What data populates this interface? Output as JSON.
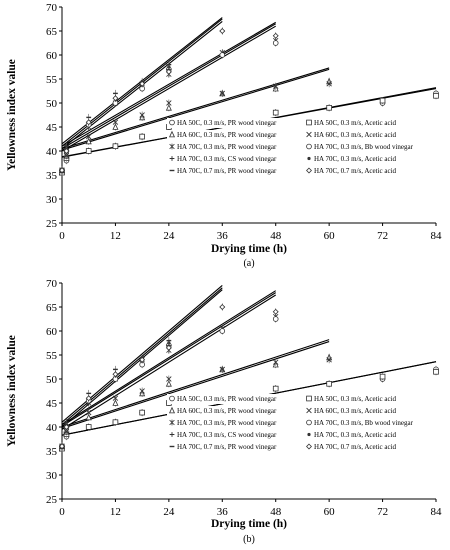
{
  "chart_data": [
    {
      "type": "scatter",
      "panel_label": "(a)",
      "xlabel": "Drying time (h)",
      "ylabel": "Yellowness index value",
      "xlim": [
        0,
        84
      ],
      "ylim": [
        25,
        70
      ],
      "xticks": [
        "0",
        "12",
        "24",
        "36",
        "48",
        "60",
        "72",
        "84"
      ],
      "yticks": [
        "25",
        "30",
        "35",
        "40",
        "45",
        "50",
        "55",
        "60",
        "65",
        "70"
      ],
      "legend": [
        {
          "label": "HA 50C, 0.3 m/s, PR wood vinegar",
          "marker": "circle"
        },
        {
          "label": "HA 50C, 0.3 m/s, Acetic acid",
          "marker": "square"
        },
        {
          "label": "HA 60C, 0.3 m/s, PR wood vinegar",
          "marker": "triangle"
        },
        {
          "label": "HA 60C, 0.3 m/s, Acetic acid",
          "marker": "x"
        },
        {
          "label": "HA 70C, 0.3 m/s, PR wood vinegar",
          "marker": "star"
        },
        {
          "label": "HA 70C, 0.3 m/s, Bb wood vinegar",
          "marker": "circle"
        },
        {
          "label": "HA 70C, 0.3 m/s, CS wood vinegar",
          "marker": "plus"
        },
        {
          "label": "HA 70C, 0.3 m/s, Acetic acid",
          "marker": "dot"
        },
        {
          "label": "HA 70C, 0.7 m/s, PR wood vinegar",
          "marker": "dash"
        },
        {
          "label": "HA 70C, 0.7 m/s, Acetic acid",
          "marker": "diamond"
        }
      ],
      "series": [
        {
          "points": [
            [
              0,
              36
            ],
            [
              1,
              38
            ],
            [
              6,
              40
            ],
            [
              12,
              41
            ],
            [
              18,
              43
            ],
            [
              24,
              45
            ],
            [
              36,
              46
            ],
            [
              48,
              48
            ],
            [
              60,
              49
            ],
            [
              72,
              50
            ],
            [
              84,
              52
            ]
          ],
          "fit": [
            [
              0,
              38.8
            ],
            [
              84,
              53
            ]
          ],
          "marker": "circle"
        },
        {
          "points": [
            [
              0,
              35.5
            ],
            [
              1,
              38.5
            ],
            [
              6,
              40
            ],
            [
              12,
              41
            ],
            [
              18,
              43
            ],
            [
              24,
              45
            ],
            [
              36,
              46
            ],
            [
              48,
              48
            ],
            [
              60,
              49
            ],
            [
              72,
              50.5
            ],
            [
              84,
              51.5
            ]
          ],
          "fit": [
            [
              0,
              38.7
            ],
            [
              84,
              53.2
            ]
          ],
          "marker": "square"
        },
        {
          "points": [
            [
              0,
              36
            ],
            [
              1,
              39
            ],
            [
              6,
              42
            ],
            [
              12,
              45
            ],
            [
              18,
              47
            ],
            [
              24,
              49
            ],
            [
              36,
              52
            ],
            [
              48,
              53
            ],
            [
              60,
              54.5
            ]
          ],
          "fit": [
            [
              0,
              40.2
            ],
            [
              60,
              57
            ]
          ],
          "marker": "triangle"
        },
        {
          "points": [
            [
              0,
              36
            ],
            [
              1,
              39
            ],
            [
              6,
              43
            ],
            [
              12,
              46
            ],
            [
              18,
              47.5
            ],
            [
              24,
              50
            ],
            [
              36,
              52
            ],
            [
              48,
              53.5
            ],
            [
              60,
              54
            ]
          ],
          "fit": [
            [
              0,
              40.5
            ],
            [
              60,
              57.3
            ]
          ],
          "marker": "x"
        },
        {
          "points": [
            [
              0,
              36
            ],
            [
              1,
              40
            ],
            [
              6,
              45
            ],
            [
              12,
              50
            ],
            [
              18,
              54
            ],
            [
              24,
              56
            ],
            [
              36,
              60.5
            ],
            [
              48,
              63
            ]
          ],
          "fit": [
            [
              0,
              40.5
            ],
            [
              48,
              66.5
            ]
          ],
          "marker": "star"
        },
        {
          "points": [
            [
              0,
              36
            ],
            [
              1,
              40
            ],
            [
              6,
              45.5
            ],
            [
              12,
              50
            ],
            [
              18,
              53
            ],
            [
              24,
              57
            ],
            [
              36,
              60
            ],
            [
              48,
              62.5
            ]
          ],
          "fit": [
            [
              0,
              41
            ],
            [
              48,
              66.8
            ]
          ],
          "marker": "circle"
        },
        {
          "points": [
            [
              0,
              36
            ],
            [
              1,
              41
            ],
            [
              6,
              46
            ],
            [
              12,
              51
            ],
            [
              18,
              54
            ],
            [
              24,
              57
            ],
            [
              36,
              65
            ]
          ],
          "fit": [
            [
              0,
              41
            ],
            [
              36,
              67.5
            ]
          ],
          "marker": "plus"
        },
        {
          "points": [
            [
              0,
              36
            ],
            [
              1,
              40.5
            ],
            [
              6,
              46
            ],
            [
              12,
              51
            ],
            [
              18,
              54.5
            ],
            [
              24,
              57.5
            ],
            [
              36,
              65
            ]
          ],
          "fit": [
            [
              0,
              40.5
            ],
            [
              36,
              67
            ]
          ],
          "marker": "dot"
        },
        {
          "points": [
            [
              0,
              35.5
            ],
            [
              1,
              41
            ],
            [
              6,
              47
            ],
            [
              12,
              52
            ],
            [
              18,
              54
            ],
            [
              24,
              58
            ],
            [
              36,
              65
            ]
          ],
          "fit": [
            [
              0,
              41.5
            ],
            [
              36,
              67.8
            ]
          ],
          "marker": "dash"
        },
        {
          "points": [
            [
              0,
              36
            ],
            [
              1,
              40
            ],
            [
              6,
              46
            ],
            [
              12,
              51
            ],
            [
              18,
              54
            ],
            [
              24,
              56.5
            ],
            [
              36,
              65
            ],
            [
              48,
              64
            ]
          ],
          "fit": [
            [
              0,
              40
            ],
            [
              48,
              66
            ]
          ],
          "marker": "diamond"
        }
      ]
    },
    {
      "type": "scatter",
      "panel_label": "(b)",
      "xlabel": "Drying time (h)",
      "ylabel": "Yellowness index value",
      "xlim": [
        0,
        84
      ],
      "ylim": [
        25,
        70
      ],
      "xticks": [
        "0",
        "12",
        "24",
        "36",
        "48",
        "60",
        "72",
        "84"
      ],
      "yticks": [
        "25",
        "30",
        "35",
        "40",
        "45",
        "50",
        "55",
        "60",
        "65",
        "70"
      ],
      "legend": [
        {
          "label": "HA 50C, 0.3 m/s, PR wood vinegar",
          "marker": "circle"
        },
        {
          "label": "HA 50C, 0.3 m/s, Acetic acid",
          "marker": "square"
        },
        {
          "label": "HA 60C, 0.3 m/s, PR wood vinegar",
          "marker": "triangle"
        },
        {
          "label": "HA 60C, 0.3 m/s, Acetic acid",
          "marker": "x"
        },
        {
          "label": "HA 70C, 0.3 m/s, PR wood vinegar",
          "marker": "star"
        },
        {
          "label": "HA 70C, 0.3 m/s, Bb wood vinegar",
          "marker": "circle"
        },
        {
          "label": "HA 70C, 0.3 m/s, CS wood vinegar",
          "marker": "plus"
        },
        {
          "label": "HA 70C, 0.3 m/s, Acetic acid",
          "marker": "dot"
        },
        {
          "label": "HA 70C, 0.7 m/s, PR wood vinegar",
          "marker": "dash"
        },
        {
          "label": "HA 70C, 0.7 m/s, Acetic acid",
          "marker": "diamond"
        }
      ],
      "series": [
        {
          "points": [
            [
              0,
              36
            ],
            [
              1,
              38
            ],
            [
              6,
              40
            ],
            [
              12,
              41
            ],
            [
              18,
              43
            ],
            [
              24,
              45
            ],
            [
              36,
              46
            ],
            [
              48,
              48
            ],
            [
              60,
              49
            ],
            [
              72,
              50
            ],
            [
              84,
              52
            ]
          ],
          "fit": [
            [
              0,
              38.3
            ],
            [
              84,
              53.6
            ]
          ],
          "marker": "circle"
        },
        {
          "points": [
            [
              0,
              35.5
            ],
            [
              1,
              38.5
            ],
            [
              6,
              40
            ],
            [
              12,
              41
            ],
            [
              18,
              43
            ],
            [
              24,
              45
            ],
            [
              36,
              46
            ],
            [
              48,
              48
            ],
            [
              60,
              49
            ],
            [
              72,
              50.5
            ],
            [
              84,
              51.5
            ]
          ],
          "fit": [
            [
              0,
              38.3
            ],
            [
              84,
              53.6
            ]
          ],
          "marker": "square"
        },
        {
          "points": [
            [
              0,
              36
            ],
            [
              1,
              39
            ],
            [
              6,
              42
            ],
            [
              12,
              45
            ],
            [
              18,
              47
            ],
            [
              24,
              49
            ],
            [
              36,
              52
            ],
            [
              48,
              53
            ],
            [
              60,
              54.5
            ]
          ],
          "fit": [
            [
              0,
              39.7
            ],
            [
              60,
              57.8
            ]
          ],
          "marker": "triangle"
        },
        {
          "points": [
            [
              0,
              36
            ],
            [
              1,
              39
            ],
            [
              6,
              43
            ],
            [
              12,
              46
            ],
            [
              18,
              47.5
            ],
            [
              24,
              50
            ],
            [
              36,
              52
            ],
            [
              48,
              53.5
            ],
            [
              60,
              54
            ]
          ],
          "fit": [
            [
              0,
              40
            ],
            [
              60,
              58.2
            ]
          ],
          "marker": "x"
        },
        {
          "points": [
            [
              0,
              36
            ],
            [
              1,
              40
            ],
            [
              6,
              45
            ],
            [
              12,
              50
            ],
            [
              18,
              54
            ],
            [
              24,
              56
            ],
            [
              36,
              60.5
            ],
            [
              48,
              63
            ]
          ],
          "fit": [
            [
              0,
              40.2
            ],
            [
              48,
              68
            ]
          ],
          "marker": "star"
        },
        {
          "points": [
            [
              0,
              36
            ],
            [
              1,
              40
            ],
            [
              6,
              45.5
            ],
            [
              12,
              50
            ],
            [
              18,
              53
            ],
            [
              24,
              57
            ],
            [
              36,
              60
            ],
            [
              48,
              62.5
            ]
          ],
          "fit": [
            [
              0,
              40.5
            ],
            [
              48,
              68.4
            ]
          ],
          "marker": "circle"
        },
        {
          "points": [
            [
              0,
              36
            ],
            [
              1,
              41
            ],
            [
              6,
              46
            ],
            [
              12,
              51
            ],
            [
              18,
              54
            ],
            [
              24,
              57
            ],
            [
              36,
              65
            ]
          ],
          "fit": [
            [
              0,
              40.5
            ],
            [
              36,
              69
            ]
          ],
          "marker": "plus"
        },
        {
          "points": [
            [
              0,
              36
            ],
            [
              1,
              40.5
            ],
            [
              6,
              46
            ],
            [
              12,
              51
            ],
            [
              18,
              54.5
            ],
            [
              24,
              57.5
            ],
            [
              36,
              65
            ]
          ],
          "fit": [
            [
              0,
              40
            ],
            [
              36,
              68.6
            ]
          ],
          "marker": "dot"
        },
        {
          "points": [
            [
              0,
              35.5
            ],
            [
              1,
              41
            ],
            [
              6,
              47
            ],
            [
              12,
              52
            ],
            [
              18,
              54
            ],
            [
              24,
              58
            ],
            [
              36,
              65
            ]
          ],
          "fit": [
            [
              0,
              41
            ],
            [
              36,
              69.5
            ]
          ],
          "marker": "dash"
        },
        {
          "points": [
            [
              0,
              36
            ],
            [
              1,
              40
            ],
            [
              6,
              46
            ],
            [
              12,
              51
            ],
            [
              18,
              54
            ],
            [
              24,
              56.5
            ],
            [
              36,
              65
            ],
            [
              48,
              64
            ]
          ],
          "fit": [
            [
              0,
              39.5
            ],
            [
              48,
              67.5
            ]
          ],
          "marker": "diamond"
        }
      ]
    }
  ]
}
